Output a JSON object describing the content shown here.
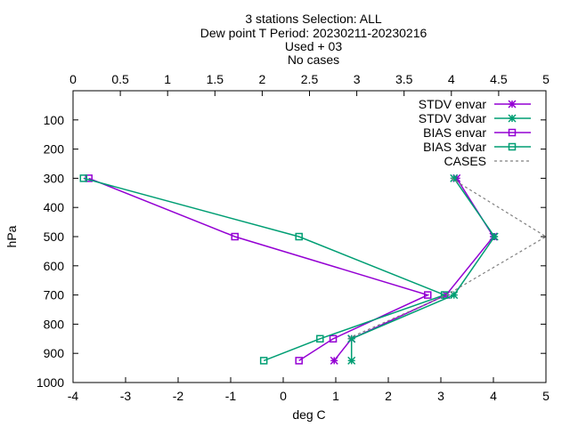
{
  "chart_data": {
    "type": "line",
    "title_lines": [
      "3 stations Selection: ALL",
      "Dew point T  Period: 20230211-20230216",
      "Used  + 03",
      "No cases"
    ],
    "xlabel": "deg C",
    "ylabel": "hPa",
    "xlim": [
      -4,
      5
    ],
    "x_ticks": [
      "-4",
      "-3",
      "-2",
      "-1",
      "0",
      "1",
      "2",
      "3",
      "4",
      "5"
    ],
    "x2lim": [
      0,
      5
    ],
    "x2_ticks": [
      "0",
      "0.5",
      "1",
      "1.5",
      "2",
      "2.5",
      "3",
      "3.5",
      "4",
      "4.5",
      "5"
    ],
    "ylim": [
      1000,
      0
    ],
    "y_ticks": [
      "100",
      "200",
      "300",
      "400",
      "500",
      "600",
      "700",
      "800",
      "900",
      "1000"
    ],
    "grid": false,
    "legend_position": "top-right",
    "series": [
      {
        "name": "STDV envar",
        "axis": "bottom",
        "marker": "star",
        "color": "#9400d3",
        "dash": false,
        "points": [
          [
            3.3,
            300
          ],
          [
            4.0,
            500
          ],
          [
            3.1,
            700
          ],
          [
            1.3,
            850
          ],
          [
            0.97,
            925
          ]
        ]
      },
      {
        "name": "STDV 3dvar",
        "axis": "bottom",
        "marker": "star",
        "color": "#009e73",
        "dash": false,
        "points": [
          [
            3.25,
            300
          ],
          [
            4.02,
            500
          ],
          [
            3.25,
            700
          ],
          [
            1.3,
            850
          ],
          [
            1.3,
            925
          ]
        ]
      },
      {
        "name": "BIAS envar",
        "axis": "bottom",
        "marker": "square",
        "color": "#9400d3",
        "dash": false,
        "points": [
          [
            -3.7,
            300
          ],
          [
            -0.92,
            500
          ],
          [
            2.75,
            700
          ],
          [
            0.95,
            850
          ],
          [
            0.3,
            925
          ]
        ]
      },
      {
        "name": "BIAS 3dvar",
        "axis": "bottom",
        "marker": "square",
        "color": "#009e73",
        "dash": false,
        "points": [
          [
            -3.8,
            300
          ],
          [
            0.3,
            500
          ],
          [
            3.07,
            700
          ],
          [
            0.7,
            850
          ],
          [
            -0.37,
            925
          ]
        ]
      },
      {
        "name": "CASES",
        "axis": "top",
        "marker": "none",
        "color": "#808080",
        "dash": true,
        "points": [
          [
            4.0,
            300
          ],
          [
            5.0,
            500
          ],
          [
            3.95,
            700
          ],
          [
            2.9,
            850
          ]
        ]
      }
    ]
  }
}
